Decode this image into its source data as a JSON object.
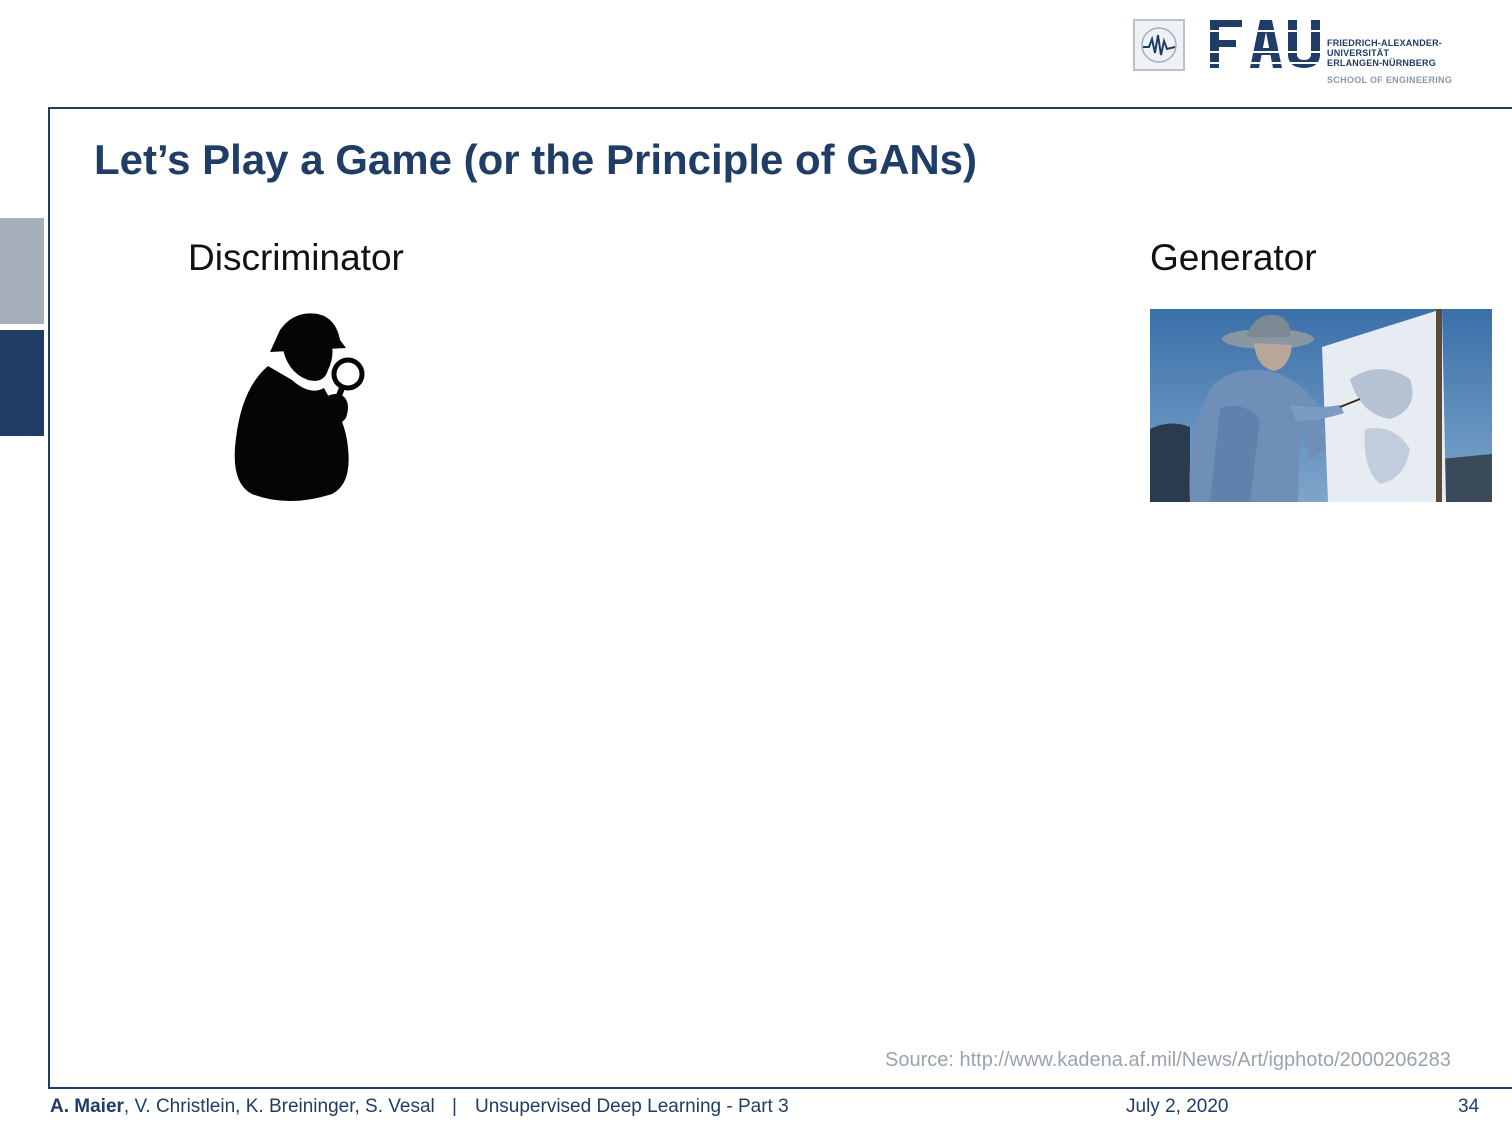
{
  "header": {
    "university_lines": [
      "FRIEDRICH-ALEXANDER-",
      "UNIVERSITÄT",
      "ERLANGEN-NÜRNBERG"
    ],
    "school": "SCHOOL OF ENGINEERING",
    "fau_wordmark": "FAU"
  },
  "slide": {
    "title": "Let’s Play a Game (or the Principle of GANs)",
    "left_label": "Discriminator",
    "right_label": "Generator",
    "source": "Source: http://www.kadena.af.mil/News/Art/igphoto/2000206283"
  },
  "footer": {
    "lead_author": "A. Maier",
    "other_authors": ", V. Christlein, K. Breininger, S. Vesal",
    "separator": "|",
    "course": "Unsupervised Deep Learning - Part 3",
    "date": "July 2, 2020",
    "page": "34"
  },
  "colors": {
    "brand": "#1f3d66",
    "tab_light": "#a5b0ba",
    "source_text": "#9aa3ad"
  }
}
